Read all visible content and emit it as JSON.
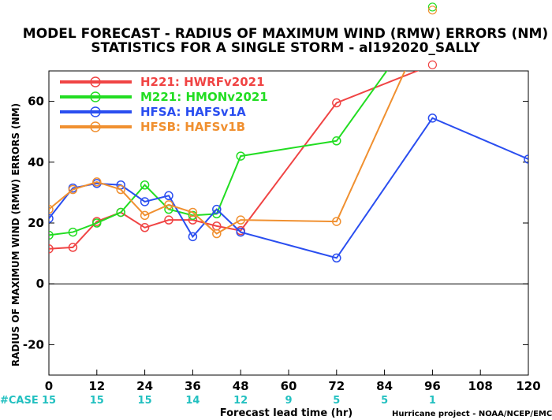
{
  "chart_data": {
    "type": "line",
    "title": "MODEL FORECAST - RADIUS OF MAXIMUM WIND (RMW) ERRORS (NM)",
    "subtitle": "STATISTICS FOR A SINGLE STORM - al192020_SALLY",
    "xlabel": "Forecast lead time (hr)",
    "ylabel": "RADIUS OF MAXIMUM WIND (RMW) ERRORS (NM)",
    "xlim": [
      0,
      120
    ],
    "ylim": [
      -30,
      70
    ],
    "x_ticks": [
      "0",
      "12",
      "24",
      "36",
      "48",
      "60",
      "72",
      "84",
      "96",
      "108",
      "120"
    ],
    "y_ticks": [
      "-20",
      "0",
      "20",
      "40",
      "60"
    ],
    "zero_line": 0,
    "series": [
      {
        "name": "H221: HWRFv2021",
        "color": "#f04444",
        "x": [
          0,
          6,
          12,
          18,
          24,
          30,
          36,
          42,
          48,
          72,
          96
        ],
        "y": [
          11.5,
          12,
          20.5,
          23.5,
          18.5,
          21,
          21,
          19,
          17.5,
          59.5,
          72
        ]
      },
      {
        "name": "M221: HMONv2021",
        "color": "#22dd22",
        "x": [
          0,
          6,
          12,
          18,
          24,
          30,
          36,
          42,
          48,
          72,
          96
        ],
        "y": [
          16,
          17,
          20,
          23.5,
          32.5,
          24.5,
          22.5,
          23,
          42,
          47,
          91
        ]
      },
      {
        "name": "HFSA: HAFSv1A",
        "color": "#2a4ef0",
        "x": [
          0,
          6,
          12,
          18,
          24,
          30,
          36,
          42,
          48,
          72,
          96,
          120
        ],
        "y": [
          21.5,
          31.5,
          33,
          32.5,
          27,
          29,
          15.5,
          24.5,
          17,
          8.5,
          54.5,
          41
        ]
      },
      {
        "name": "HFSB: HAFSv1B",
        "color": "#f09030",
        "x": [
          0,
          6,
          12,
          18,
          24,
          30,
          36,
          42,
          48,
          72,
          96
        ],
        "y": [
          24.5,
          31,
          33.5,
          31,
          22.5,
          26,
          23.5,
          16.5,
          21,
          20.5,
          90
        ]
      }
    ],
    "legend_position": "top-left",
    "case_label": "#CASE",
    "case_x": [
      0,
      12,
      24,
      36,
      48,
      60,
      72,
      84,
      96
    ],
    "case_counts": [
      "15",
      "15",
      "15",
      "14",
      "12",
      "9",
      "5",
      "5",
      "1"
    ],
    "credit": "Hurricane project - NOAA/NCEP/EMC"
  }
}
